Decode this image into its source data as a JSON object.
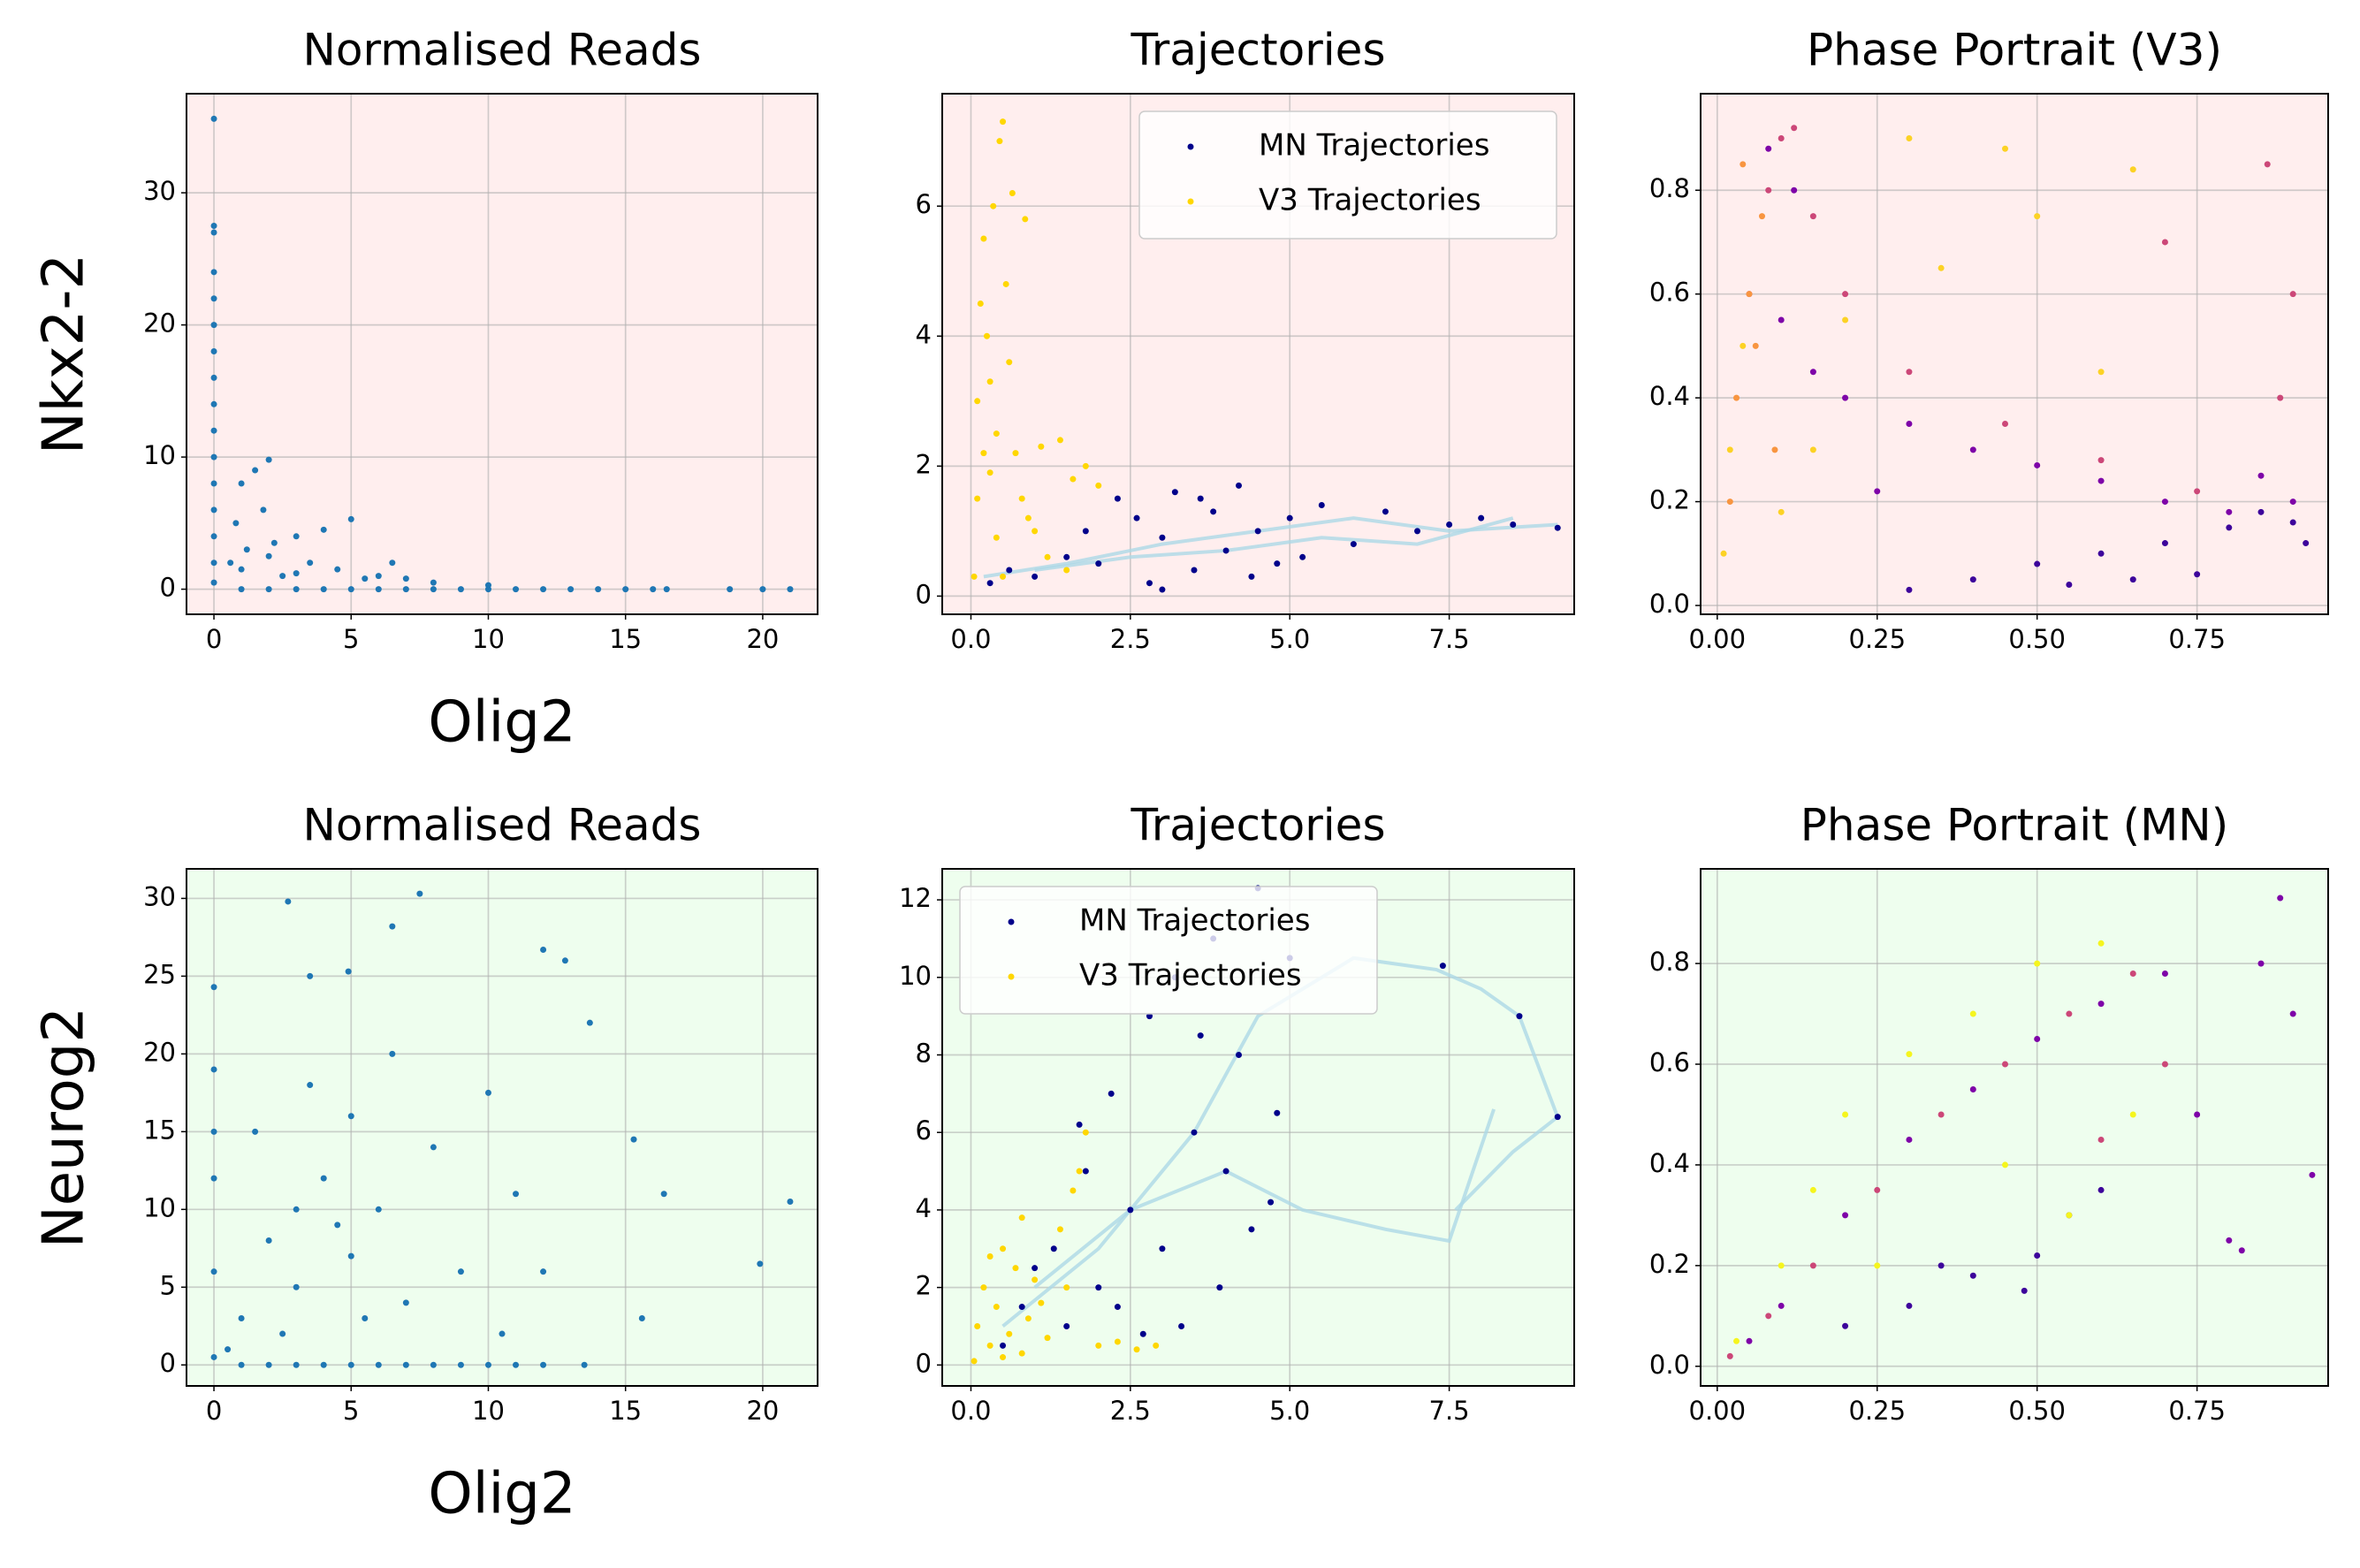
{
  "chart_data": [
    {
      "type": "scatter",
      "title": "Normalised Reads",
      "xlabel": "Olig2",
      "ylabel": "Nkx2-2",
      "background": "#ffeeee",
      "grid": true,
      "xlim": [
        -1,
        22
      ],
      "ylim": [
        -1.9,
        37.5
      ],
      "xticks": [
        0,
        5,
        10,
        15,
        20
      ],
      "yticks": [
        0,
        10,
        20,
        30
      ],
      "series": [
        {
          "color": "#1f77b4",
          "x": [
            0,
            0,
            0,
            0,
            0,
            0,
            0,
            0,
            0,
            0,
            0,
            0,
            0,
            0,
            0,
            0,
            1,
            2,
            3,
            4,
            5,
            6,
            7,
            8,
            9,
            10,
            11,
            12,
            13,
            14,
            15,
            16,
            16.5,
            18.8,
            20,
            21,
            1,
            1.5,
            2,
            0.8,
            1.2,
            2,
            3,
            4,
            5,
            3.5,
            2.5,
            4.5,
            6,
            7,
            8,
            6.5,
            1,
            1.8,
            0.6,
            3,
            5.5,
            10,
            2.2
          ],
          "y": [
            35.6,
            27.5,
            27,
            24,
            22,
            20,
            18,
            16,
            14,
            12,
            10,
            8,
            6,
            4,
            2,
            0.5,
            0,
            0,
            0,
            0,
            0,
            0,
            0,
            0,
            0,
            0,
            0,
            0,
            0,
            0,
            0,
            0,
            0,
            0,
            0,
            0,
            8,
            9,
            9.8,
            5,
            3,
            2.5,
            4,
            4.5,
            5.3,
            2,
            1,
            1.5,
            1,
            0.8,
            0.5,
            2,
            1.5,
            6,
            2,
            1.2,
            0.8,
            0.3,
            3.5
          ]
        }
      ]
    },
    {
      "type": "scatter",
      "title": "Trajectories",
      "background": "#ffeeee",
      "grid": true,
      "legend": "upper right",
      "xlim": [
        -0.45,
        9.46
      ],
      "ylim": [
        -0.28,
        7.73
      ],
      "xticks": [
        {
          "value": 0,
          "label": "0.0"
        },
        2.5,
        {
          "value": 5,
          "label": "5.0"
        },
        7.5
      ],
      "yticks": [
        0,
        2,
        4,
        6
      ],
      "series": [
        {
          "kind": "line",
          "color": "#add8e6",
          "x": [
            0.2,
            1.5,
            3,
            4.5,
            6,
            7.5,
            9.2
          ],
          "y": [
            0.3,
            0.5,
            0.8,
            1.0,
            1.2,
            1.0,
            1.1
          ]
        },
        {
          "kind": "line",
          "color": "#add8e6",
          "x": [
            1,
            2.5,
            4,
            5.5,
            7,
            8.5
          ],
          "y": [
            0.4,
            0.6,
            0.7,
            0.9,
            0.8,
            1.2
          ]
        },
        {
          "name": "MN Trajectories",
          "color": "#00008b",
          "x": [
            0.3,
            0.6,
            1,
            1.5,
            2,
            2.3,
            2.6,
            3,
            3.2,
            3.5,
            3.8,
            4,
            4.2,
            4.5,
            4.8,
            5,
            5.5,
            6,
            6.5,
            7,
            7.5,
            8,
            8.5,
            9.2,
            2.8,
            3.6,
            4.4,
            1.8,
            5.2,
            3.0
          ],
          "y": [
            0.2,
            0.4,
            0.3,
            0.6,
            0.5,
            1.5,
            1.2,
            0.9,
            1.6,
            0.4,
            1.3,
            0.7,
            1.7,
            1.0,
            0.5,
            1.2,
            1.4,
            0.8,
            1.3,
            1.0,
            1.1,
            1.2,
            1.1,
            1.05,
            0.2,
            1.5,
            0.3,
            1.0,
            0.6,
            0.1
          ]
        },
        {
          "name": "V3 Trajectories",
          "color": "#ffd700",
          "x": [
            0.05,
            0.1,
            0.1,
            0.15,
            0.2,
            0.2,
            0.25,
            0.3,
            0.35,
            0.4,
            0.45,
            0.5,
            0.55,
            0.6,
            0.7,
            0.8,
            0.9,
            1.0,
            1.2,
            1.4,
            1.6,
            1.8,
            2.0,
            0.5,
            0.65,
            0.85,
            0.4,
            0.3,
            1.1,
            1.5
          ],
          "y": [
            0.3,
            1.5,
            3.0,
            4.5,
            2.2,
            5.5,
            4.0,
            3.3,
            6.0,
            2.5,
            7.0,
            7.3,
            4.8,
            3.6,
            2.2,
            1.5,
            1.2,
            1.0,
            0.6,
            2.4,
            1.8,
            2.0,
            1.7,
            0.3,
            6.2,
            5.8,
            0.9,
            1.9,
            2.3,
            0.4
          ]
        }
      ]
    },
    {
      "type": "scatter",
      "title": "Phase Portrait (V3)",
      "background": "#ffeeee",
      "grid": true,
      "xlim": [
        -0.026,
        0.955
      ],
      "ylim": [
        -0.017,
        0.986
      ],
      "xticks": [
        {
          "value": 0,
          "label": "0.00"
        },
        0.25,
        {
          "value": 0.5,
          "label": "0.50"
        },
        0.75
      ],
      "yticks": [
        {
          "value": 0,
          "label": "0.0"
        },
        0.2,
        0.4,
        0.6,
        0.8
      ],
      "series": [
        {
          "color": "#3d049b",
          "x": [
            0.3,
            0.4,
            0.5,
            0.6,
            0.7,
            0.8,
            0.85,
            0.9,
            0.92,
            0.75,
            0.65,
            0.55
          ],
          "y": [
            0.03,
            0.05,
            0.08,
            0.1,
            0.12,
            0.15,
            0.18,
            0.16,
            0.12,
            0.06,
            0.05,
            0.04
          ]
        },
        {
          "color": "#7e03a8",
          "x": [
            0.1,
            0.15,
            0.2,
            0.3,
            0.4,
            0.5,
            0.6,
            0.7,
            0.8,
            0.9,
            0.85,
            0.12,
            0.08,
            0.25
          ],
          "y": [
            0.55,
            0.45,
            0.4,
            0.35,
            0.3,
            0.27,
            0.24,
            0.2,
            0.18,
            0.2,
            0.25,
            0.8,
            0.88,
            0.22
          ]
        },
        {
          "color": "#cc4778",
          "x": [
            0.05,
            0.08,
            0.1,
            0.12,
            0.15,
            0.2,
            0.3,
            0.45,
            0.6,
            0.75,
            0.86,
            0.9,
            0.88,
            0.7
          ],
          "y": [
            0.6,
            0.8,
            0.9,
            0.92,
            0.75,
            0.6,
            0.45,
            0.35,
            0.28,
            0.22,
            0.85,
            0.6,
            0.4,
            0.7
          ]
        },
        {
          "color": "#f89540",
          "x": [
            0.02,
            0.03,
            0.05,
            0.07,
            0.04,
            0.06,
            0.09
          ],
          "y": [
            0.2,
            0.4,
            0.6,
            0.75,
            0.85,
            0.5,
            0.3
          ]
        },
        {
          "color": "#fcd225",
          "x": [
            0.01,
            0.02,
            0.04,
            0.2,
            0.35,
            0.5,
            0.65,
            0.3,
            0.45,
            0.6,
            0.1,
            0.15
          ],
          "y": [
            0.1,
            0.3,
            0.5,
            0.55,
            0.65,
            0.75,
            0.84,
            0.9,
            0.88,
            0.45,
            0.18,
            0.3
          ]
        }
      ]
    },
    {
      "type": "scatter",
      "title": "Normalised Reads",
      "xlabel": "Olig2",
      "ylabel": "Neurog2",
      "background": "#eefeee",
      "grid": true,
      "xlim": [
        -1,
        22
      ],
      "ylim": [
        -1.35,
        31.9
      ],
      "xticks": [
        0,
        5,
        10,
        15,
        20
      ],
      "yticks": [
        0,
        5,
        10,
        15,
        20,
        25,
        30
      ],
      "series": [
        {
          "color": "#1f77b4",
          "x": [
            0,
            0,
            0,
            0,
            0,
            0,
            1,
            2,
            3,
            4,
            5,
            6,
            7,
            8,
            9,
            10,
            11,
            12,
            13.5,
            2.7,
            7.5,
            6.5,
            4.9,
            3.5,
            12,
            12.8,
            13.7,
            15.3,
            16.4,
            21,
            19.9,
            15.6,
            10,
            11,
            1,
            2,
            3,
            4,
            5,
            6,
            7,
            8,
            9,
            1.5,
            2.5,
            3.5,
            4.5,
            5.5,
            6.5,
            0.5,
            10.5,
            12,
            3,
            5
          ],
          "y": [
            24.3,
            19,
            15,
            12,
            6,
            0.5,
            0,
            0,
            0,
            0,
            0,
            0,
            0,
            0,
            0,
            0,
            0,
            0,
            0,
            29.8,
            30.3,
            28.2,
            25.3,
            25,
            26.7,
            26,
            22,
            14.5,
            11,
            10.5,
            6.5,
            3,
            17.5,
            11,
            3,
            8,
            5,
            12,
            7,
            10,
            4,
            14,
            6,
            15,
            2,
            18,
            9,
            3,
            20,
            1,
            2,
            6,
            10,
            16
          ]
        }
      ]
    },
    {
      "type": "scatter",
      "title": "Trajectories",
      "background": "#eefeee",
      "grid": true,
      "legend": "upper left",
      "xlim": [
        -0.45,
        9.46
      ],
      "ylim": [
        -0.54,
        12.8
      ],
      "xticks": [
        {
          "value": 0,
          "label": "0.0"
        },
        2.5,
        {
          "value": 5,
          "label": "5.0"
        },
        7.5
      ],
      "yticks": [
        0,
        2,
        4,
        6,
        8,
        10,
        12
      ],
      "series": [
        {
          "kind": "line",
          "color": "#add8e6",
          "x": [
            0.5,
            2,
            3.5,
            4.5,
            6,
            7.3,
            8,
            8.6,
            9.2,
            8.5,
            7.6
          ],
          "y": [
            1,
            3,
            6,
            9,
            10.5,
            10.2,
            9.7,
            9,
            6.4,
            5.5,
            4
          ]
        },
        {
          "kind": "line",
          "color": "#add8e6",
          "x": [
            1,
            2.5,
            4,
            5.2,
            6.5,
            7.5,
            8.2
          ],
          "y": [
            2,
            4,
            5,
            4,
            3.5,
            3.2,
            6.6
          ]
        },
        {
          "name": "MN Trajectories",
          "color": "#00008b",
          "x": [
            0.5,
            0.8,
            1.0,
            1.3,
            1.5,
            1.8,
            2.0,
            2.2,
            2.5,
            2.8,
            3.0,
            3.2,
            3.5,
            3.8,
            4.0,
            4.2,
            4.5,
            4.8,
            5.0,
            3.3,
            2.7,
            3.9,
            4.4,
            1.7,
            2.3,
            3.6,
            4.7,
            7.4,
            8.6,
            9.2
          ],
          "y": [
            0.5,
            1.5,
            2.5,
            3.0,
            1.0,
            5.0,
            2.0,
            7.0,
            4.0,
            9.0,
            3.0,
            10.0,
            6.0,
            11.0,
            5.0,
            8.0,
            12.3,
            6.5,
            10.5,
            1.0,
            0.8,
            2.0,
            3.5,
            6.2,
            1.5,
            8.5,
            4.2,
            10.3,
            9.0,
            6.4
          ]
        },
        {
          "name": "V3 Trajectories",
          "color": "#ffd700",
          "x": [
            0.05,
            0.1,
            0.2,
            0.3,
            0.4,
            0.5,
            0.6,
            0.7,
            0.8,
            0.9,
            1.0,
            1.2,
            1.4,
            1.6,
            1.8,
            2.0,
            2.3,
            2.6,
            2.9,
            0.3,
            0.5,
            0.8,
            1.1,
            1.5,
            1.7
          ],
          "y": [
            0.1,
            1.0,
            2.0,
            0.5,
            1.5,
            3.0,
            0.8,
            2.5,
            3.8,
            1.2,
            2.2,
            0.7,
            3.5,
            4.5,
            6.0,
            0.5,
            0.6,
            0.4,
            0.5,
            2.8,
            0.2,
            0.3,
            1.6,
            2.0,
            5.0
          ]
        }
      ]
    },
    {
      "type": "scatter",
      "title": "Phase Portrait (MN)",
      "background": "#eefeee",
      "grid": true,
      "xlim": [
        -0.026,
        0.955
      ],
      "ylim": [
        -0.039,
        0.988
      ],
      "xticks": [
        {
          "value": 0,
          "label": "0.00"
        },
        0.25,
        {
          "value": 0.5,
          "label": "0.50"
        },
        0.75
      ],
      "yticks": [
        {
          "value": 0,
          "label": "0.0"
        },
        0.2,
        0.4,
        0.6,
        0.8
      ],
      "series": [
        {
          "color": "#3d049b",
          "x": [
            0.2,
            0.3,
            0.4,
            0.5,
            0.55,
            0.6,
            0.48,
            0.35
          ],
          "y": [
            0.08,
            0.12,
            0.18,
            0.22,
            0.3,
            0.35,
            0.15,
            0.2
          ]
        },
        {
          "color": "#7e03a8",
          "x": [
            0.05,
            0.1,
            0.2,
            0.3,
            0.4,
            0.5,
            0.6,
            0.7,
            0.75,
            0.8,
            0.85,
            0.88,
            0.9,
            0.93,
            0.82
          ],
          "y": [
            0.05,
            0.12,
            0.3,
            0.45,
            0.55,
            0.65,
            0.72,
            0.78,
            0.5,
            0.25,
            0.8,
            0.93,
            0.7,
            0.38,
            0.23
          ]
        },
        {
          "color": "#cc4778",
          "x": [
            0.02,
            0.08,
            0.15,
            0.25,
            0.35,
            0.45,
            0.55,
            0.65,
            0.7,
            0.6
          ],
          "y": [
            0.02,
            0.1,
            0.2,
            0.35,
            0.5,
            0.6,
            0.7,
            0.78,
            0.6,
            0.45
          ]
        },
        {
          "color": "#f5f51e",
          "x": [
            0.03,
            0.1,
            0.15,
            0.2,
            0.3,
            0.4,
            0.5,
            0.6,
            0.65,
            0.25,
            0.45,
            0.55
          ],
          "y": [
            0.05,
            0.2,
            0.35,
            0.5,
            0.62,
            0.7,
            0.8,
            0.84,
            0.5,
            0.2,
            0.4,
            0.3
          ]
        }
      ]
    }
  ]
}
